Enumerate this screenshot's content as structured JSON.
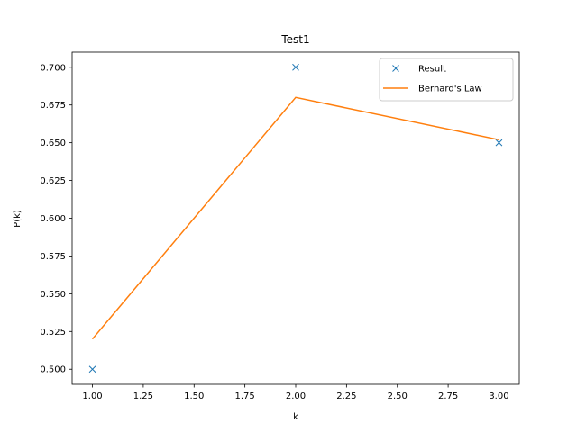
{
  "chart_data": {
    "type": "line",
    "title": "Test1",
    "xlabel": "k",
    "ylabel": "P(k)",
    "xlim": [
      0.9,
      3.1
    ],
    "ylim": [
      0.49,
      0.71
    ],
    "xticks": [
      "1.00",
      "1.25",
      "1.50",
      "1.75",
      "2.00",
      "2.25",
      "2.50",
      "2.75",
      "3.00"
    ],
    "yticks": [
      "0.500",
      "0.525",
      "0.550",
      "0.575",
      "0.600",
      "0.625",
      "0.650",
      "0.675",
      "0.700"
    ],
    "grid": false,
    "legend_position": "top-right",
    "series": [
      {
        "name": "Result",
        "kind": "markers",
        "marker": "x",
        "color": "#1f77b4",
        "x": [
          1,
          2,
          3
        ],
        "y": [
          0.5,
          0.7,
          0.65
        ]
      },
      {
        "name": "Bernard's Law",
        "kind": "line",
        "color": "#ff7f0e",
        "x": [
          1,
          2,
          3
        ],
        "y": [
          0.52,
          0.68,
          0.652
        ]
      }
    ]
  }
}
